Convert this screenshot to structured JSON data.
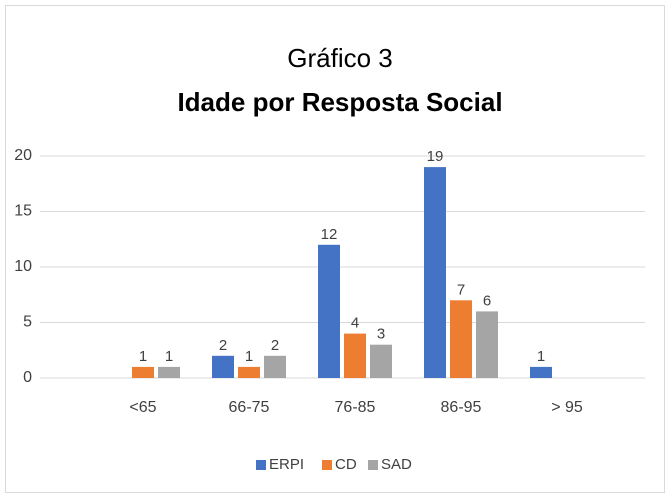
{
  "chart_data": {
    "type": "bar",
    "title": "Gráfico 3",
    "subtitle": "Idade por Resposta Social",
    "categories": [
      "<65",
      "66-75",
      "76-85",
      "86-95",
      "> 95"
    ],
    "series": [
      {
        "name": "ERPI",
        "color": "#4472c4",
        "values": [
          null,
          2,
          12,
          19,
          1
        ]
      },
      {
        "name": "CD",
        "color": "#ed7d31",
        "values": [
          1,
          1,
          4,
          7,
          null
        ]
      },
      {
        "name": "SAD",
        "color": "#a5a5a5",
        "values": [
          1,
          2,
          3,
          6,
          null
        ]
      }
    ],
    "ylim": [
      0,
      20
    ],
    "yticks": [
      0,
      5,
      10,
      15,
      20
    ],
    "grid": true,
    "legend": "bottom",
    "data_labels": true
  }
}
